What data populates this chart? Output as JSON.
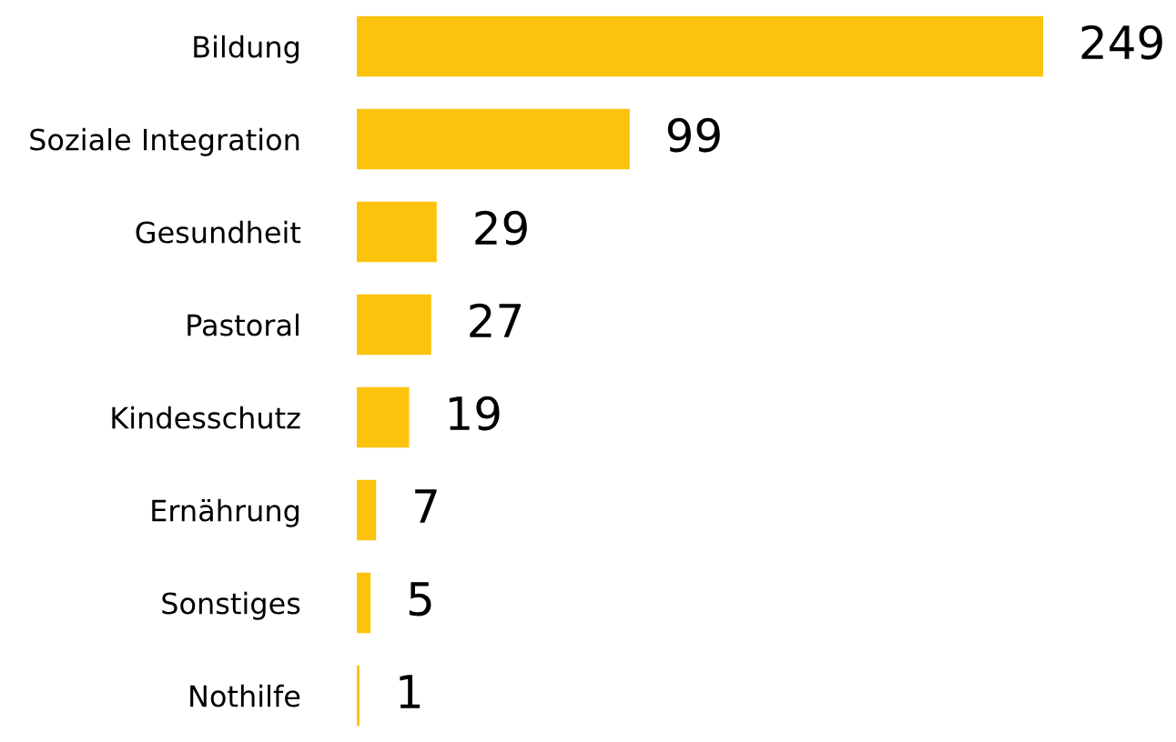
{
  "chart_data": {
    "type": "bar",
    "orientation": "horizontal",
    "categories": [
      "Bildung",
      "Soziale Integration",
      "Gesundheit",
      "Pastoral",
      "Kindesschutz",
      "Ernährung",
      "Sonstiges",
      "Nothilfe"
    ],
    "values": [
      249,
      99,
      29,
      27,
      19,
      7,
      5,
      1
    ],
    "color": "#fcc30d",
    "data_labels": true,
    "grid": false,
    "legend": false
  }
}
